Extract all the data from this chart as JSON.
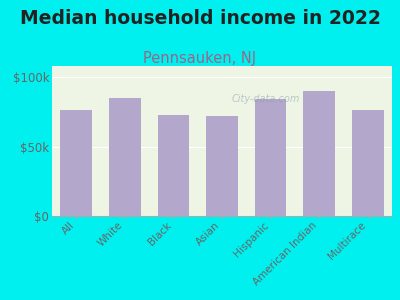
{
  "title": "Median household income in 2022",
  "subtitle": "Pennsauken, NJ",
  "categories": [
    "All",
    "White",
    "Black",
    "Asian",
    "Hispanic",
    "American Indian",
    "Multirace"
  ],
  "values": [
    76000,
    85000,
    73000,
    72000,
    84000,
    90000,
    76000
  ],
  "bar_color": "#b3a8cc",
  "background_color": "#00f0f0",
  "title_color": "#222222",
  "subtitle_color": "#996688",
  "tick_color": "#666666",
  "title_fontsize": 13.5,
  "subtitle_fontsize": 10.5,
  "ylabel_ticks": [
    "$0",
    "$50k",
    "$100k"
  ],
  "ytick_vals": [
    0,
    50000,
    100000
  ],
  "ylim": [
    0,
    108000
  ],
  "watermark": "City-data.com"
}
